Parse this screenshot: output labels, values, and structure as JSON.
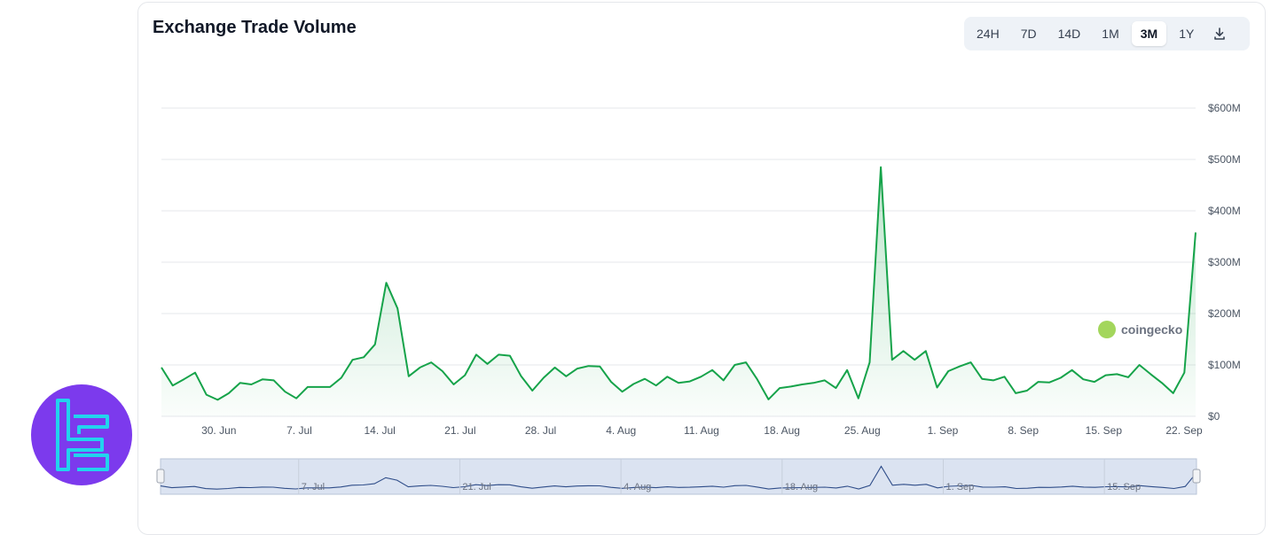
{
  "card": {
    "title": "Exchange Trade Volume"
  },
  "ranges": {
    "items": [
      "24H",
      "7D",
      "14D",
      "1M",
      "3M",
      "1Y"
    ],
    "active": "3M",
    "download_icon": "download-icon"
  },
  "watermark": {
    "text": "coingecko"
  },
  "logo": {
    "icon": "tradingfinder-logo",
    "color": "#7c3aed"
  },
  "chart_data": {
    "type": "area",
    "title": "Exchange Trade Volume",
    "line_color": "#16a34a",
    "fill_color": "#dcfce7",
    "yticks": [
      "$0",
      "$100M",
      "$200M",
      "$300M",
      "$400M",
      "$500M",
      "$600M"
    ],
    "ylim": [
      0,
      600
    ],
    "y_unit": "$M",
    "xticks": [
      "30. Jun",
      "7. Jul",
      "14. Jul",
      "21. Jul",
      "28. Jul",
      "4. Aug",
      "11. Aug",
      "18. Aug",
      "25. Aug",
      "1. Sep",
      "8. Sep",
      "15. Sep",
      "22. Sep"
    ],
    "navigator_labels": [
      "7. Jul",
      "21. Jul",
      "4. Aug",
      "18. Aug",
      "1. Sep",
      "15. Sep"
    ],
    "x_start": "2024-06-25",
    "x_end": "2024-09-23",
    "grid": true,
    "series": [
      {
        "values": [
          95,
          60,
          72,
          85,
          42,
          32,
          45,
          65,
          62,
          72,
          70,
          48,
          35,
          57,
          57,
          57,
          75,
          110,
          115,
          140,
          260,
          210,
          78,
          95,
          105,
          88,
          62,
          80,
          120,
          102,
          120,
          118,
          78,
          50,
          75,
          95,
          78,
          93,
          98,
          97,
          67,
          48,
          63,
          73,
          60,
          77,
          65,
          68,
          77,
          90,
          70,
          100,
          105,
          72,
          33,
          55,
          58,
          62,
          65,
          70,
          55,
          90,
          35,
          105,
          485,
          110,
          127,
          110,
          127,
          56,
          88,
          97,
          105,
          73,
          70,
          77,
          45,
          50,
          67,
          66,
          75,
          90,
          72,
          67,
          80,
          82,
          76,
          100,
          82,
          65,
          45,
          85,
          358
        ]
      }
    ]
  }
}
